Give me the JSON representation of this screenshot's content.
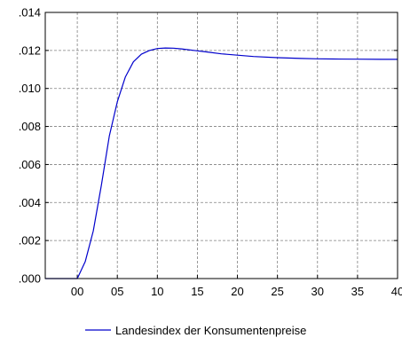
{
  "chart_data": {
    "type": "line",
    "title": "",
    "xlabel": "",
    "ylabel": "",
    "xlim": [
      -4,
      40
    ],
    "ylim": [
      0,
      0.014
    ],
    "x_ticks": [
      0,
      5,
      10,
      15,
      20,
      25,
      30,
      35,
      40
    ],
    "x_tick_labels": [
      "00",
      "05",
      "10",
      "15",
      "20",
      "25",
      "30",
      "35",
      "40"
    ],
    "y_ticks": [
      0,
      0.002,
      0.004,
      0.006,
      0.008,
      0.01,
      0.012,
      0.014
    ],
    "y_tick_labels": [
      ".000",
      ".002",
      ".004",
      ".006",
      ".008",
      ".010",
      ".012",
      ".014"
    ],
    "grid": true,
    "legend_position": "bottom-center",
    "series": [
      {
        "name": "Landesindex der Konsumentenpreise",
        "color": "#0000cc",
        "x": [
          -4,
          -3,
          -2,
          -1,
          0,
          1,
          2,
          3,
          4,
          5,
          6,
          7,
          8,
          9,
          10,
          11,
          12,
          13,
          14,
          15,
          16,
          18,
          20,
          22,
          25,
          28,
          30,
          32,
          35,
          38,
          40
        ],
        "y": [
          0,
          0,
          0,
          0,
          0,
          0.0009,
          0.0025,
          0.0049,
          0.0075,
          0.0093,
          0.0106,
          0.0114,
          0.0118,
          0.012,
          0.0121,
          0.01213,
          0.01212,
          0.01208,
          0.01203,
          0.01198,
          0.01193,
          0.01182,
          0.01175,
          0.01168,
          0.01162,
          0.01158,
          0.01156,
          0.01155,
          0.01154,
          0.01153,
          0.01153
        ]
      }
    ]
  }
}
